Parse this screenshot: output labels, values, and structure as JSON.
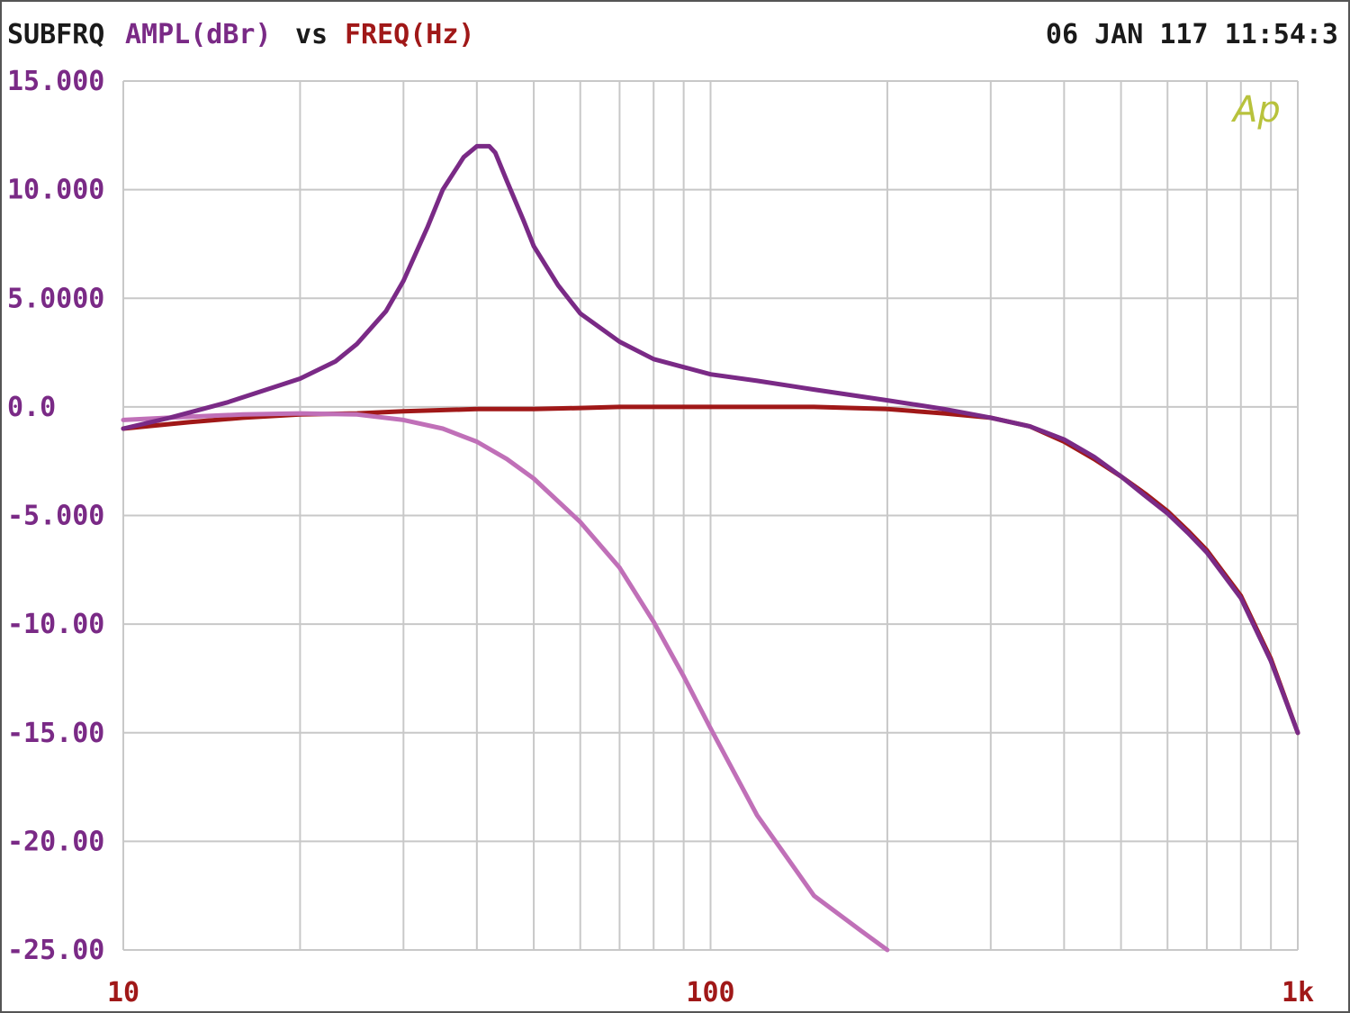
{
  "header": {
    "title": "SUBFRQ",
    "y_quantity": "AMPL(dBr)",
    "vs": "vs",
    "x_quantity": "FREQ(Hz)",
    "timestamp": "06 JAN 117 11:54:3"
  },
  "logo": "Ap",
  "colors": {
    "background": "#ffffff",
    "grid": "#c8c8c8",
    "axis_text_y": "#7a2a86",
    "axis_text_x": "#a01818",
    "title_text": "#1a1a1a",
    "logo": "#b8c23c"
  },
  "chart_data": {
    "type": "line",
    "x_scale": "log",
    "xlim": [
      10,
      1000
    ],
    "ylim": [
      -25,
      15
    ],
    "grid": true,
    "y_ticks": [
      {
        "value": 15,
        "label": "15.000"
      },
      {
        "value": 10,
        "label": "10.000"
      },
      {
        "value": 5,
        "label": "5.0000"
      },
      {
        "value": 0,
        "label": "0.0"
      },
      {
        "value": -5,
        "label": "-5.000"
      },
      {
        "value": -10,
        "label": "-10.00"
      },
      {
        "value": -15,
        "label": "-15.00"
      },
      {
        "value": -20,
        "label": "-20.00"
      },
      {
        "value": -25,
        "label": "-25.00"
      }
    ],
    "x_ticks": [
      {
        "value": 10,
        "label": "10"
      },
      {
        "value": 100,
        "label": "100"
      },
      {
        "value": 1000,
        "label": "1k"
      }
    ],
    "x_gridlines": [
      10,
      20,
      30,
      40,
      50,
      60,
      70,
      80,
      90,
      100,
      200,
      300,
      400,
      500,
      600,
      700,
      800,
      900,
      1000
    ],
    "series": [
      {
        "color": "#a01818",
        "width": 5,
        "x": [
          10,
          13,
          16,
          20,
          25,
          30,
          40,
          50,
          60,
          70,
          80,
          100,
          120,
          150,
          200,
          250,
          300,
          350,
          400,
          450,
          500,
          550,
          600,
          650,
          700,
          800,
          900,
          1000
        ],
        "y": [
          -1.0,
          -0.7,
          -0.5,
          -0.35,
          -0.3,
          -0.2,
          -0.1,
          -0.1,
          -0.05,
          0,
          0,
          0,
          0,
          0,
          -0.1,
          -0.3,
          -0.5,
          -0.9,
          -1.6,
          -2.4,
          -3.2,
          -4.0,
          -4.8,
          -5.7,
          -6.6,
          -8.7,
          -11.6,
          -15.0
        ]
      },
      {
        "color": "#c070b8",
        "width": 5,
        "x": [
          10,
          13,
          16,
          20,
          25,
          30,
          35,
          40,
          45,
          50,
          60,
          70,
          80,
          90,
          100,
          120,
          150,
          180,
          200
        ],
        "y": [
          -0.6,
          -0.45,
          -0.35,
          -0.3,
          -0.35,
          -0.6,
          -1.0,
          -1.6,
          -2.4,
          -3.3,
          -5.3,
          -7.4,
          -9.9,
          -12.4,
          -14.8,
          -18.8,
          -22.5,
          -24.1,
          -25.0
        ]
      },
      {
        "color": "#7a2a86",
        "width": 5,
        "x": [
          10,
          12,
          15,
          18,
          20,
          23,
          25,
          28,
          30,
          33,
          35,
          38,
          40,
          41,
          42,
          43,
          45,
          48,
          50,
          55,
          60,
          70,
          80,
          100,
          120,
          150,
          200,
          250,
          300,
          350,
          400,
          450,
          500,
          550,
          600,
          650,
          700,
          800,
          900,
          1000
        ],
        "y": [
          -1.0,
          -0.5,
          0.2,
          0.9,
          1.3,
          2.1,
          2.9,
          4.4,
          5.8,
          8.3,
          10.0,
          11.5,
          12.0,
          12.0,
          12.0,
          11.7,
          10.4,
          8.6,
          7.4,
          5.6,
          4.3,
          3.0,
          2.2,
          1.5,
          1.2,
          0.8,
          0.3,
          -0.1,
          -0.5,
          -0.9,
          -1.5,
          -2.3,
          -3.2,
          -4.1,
          -4.9,
          -5.8,
          -6.7,
          -8.8,
          -11.7,
          -15.0
        ]
      }
    ]
  }
}
